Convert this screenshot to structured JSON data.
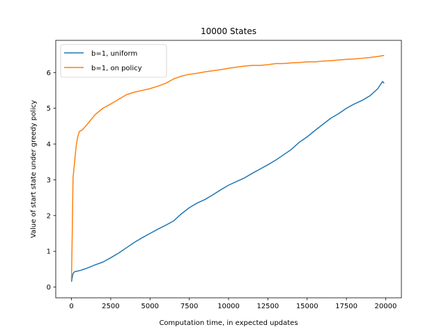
{
  "chart_data": {
    "type": "line",
    "title": "10000 States",
    "xlabel": "Computation time, in expected updates",
    "ylabel": "Value of start state under greedy policy",
    "xlim": [
      -1000,
      21000
    ],
    "ylim": [
      -0.3,
      6.9
    ],
    "xticks": [
      0,
      2500,
      5000,
      7500,
      10000,
      12500,
      15000,
      17500,
      20000
    ],
    "yticks": [
      0,
      1,
      2,
      3,
      4,
      5,
      6
    ],
    "grid": false,
    "legend_position": "upper left",
    "series": [
      {
        "name": "b=1, uniform",
        "color": "#1f77b4",
        "x": [
          0,
          100,
          200,
          400,
          600,
          800,
          1000,
          1500,
          2000,
          2500,
          3000,
          3500,
          4000,
          4500,
          5000,
          5500,
          6000,
          6500,
          7000,
          7500,
          8000,
          8500,
          9000,
          9500,
          10000,
          10500,
          11000,
          11500,
          12000,
          12500,
          13000,
          13500,
          14000,
          14500,
          15000,
          15500,
          16000,
          16500,
          17000,
          17500,
          18000,
          18500,
          19000,
          19500,
          19800,
          19900
        ],
        "y": [
          0.15,
          0.38,
          0.43,
          0.45,
          0.47,
          0.5,
          0.53,
          0.62,
          0.7,
          0.82,
          0.95,
          1.1,
          1.25,
          1.38,
          1.5,
          1.62,
          1.73,
          1.85,
          2.05,
          2.22,
          2.35,
          2.45,
          2.58,
          2.72,
          2.85,
          2.95,
          3.05,
          3.18,
          3.3,
          3.42,
          3.55,
          3.7,
          3.85,
          4.05,
          4.2,
          4.38,
          4.55,
          4.72,
          4.85,
          5.0,
          5.12,
          5.22,
          5.35,
          5.55,
          5.75,
          5.7
        ]
      },
      {
        "name": "b=1, on policy",
        "color": "#ff7f0e",
        "x": [
          0,
          50,
          100,
          200,
          300,
          400,
          500,
          700,
          1000,
          1500,
          2000,
          2500,
          3000,
          3500,
          4000,
          4500,
          5000,
          5500,
          6000,
          6500,
          7000,
          7500,
          8000,
          8500,
          9000,
          9500,
          10000,
          10500,
          11000,
          11500,
          12000,
          12500,
          13000,
          13500,
          14000,
          14500,
          15000,
          15500,
          16000,
          16500,
          17000,
          17500,
          18000,
          18500,
          19000,
          19500,
          19900
        ],
        "y": [
          0.2,
          1.5,
          3.05,
          3.5,
          3.95,
          4.2,
          4.35,
          4.4,
          4.55,
          4.82,
          5.0,
          5.12,
          5.25,
          5.38,
          5.45,
          5.5,
          5.55,
          5.62,
          5.7,
          5.82,
          5.9,
          5.95,
          5.98,
          6.02,
          6.05,
          6.08,
          6.12,
          6.15,
          6.18,
          6.2,
          6.2,
          6.22,
          6.25,
          6.25,
          6.27,
          6.28,
          6.3,
          6.3,
          6.32,
          6.33,
          6.35,
          6.37,
          6.38,
          6.4,
          6.42,
          6.45,
          6.48
        ]
      }
    ]
  }
}
